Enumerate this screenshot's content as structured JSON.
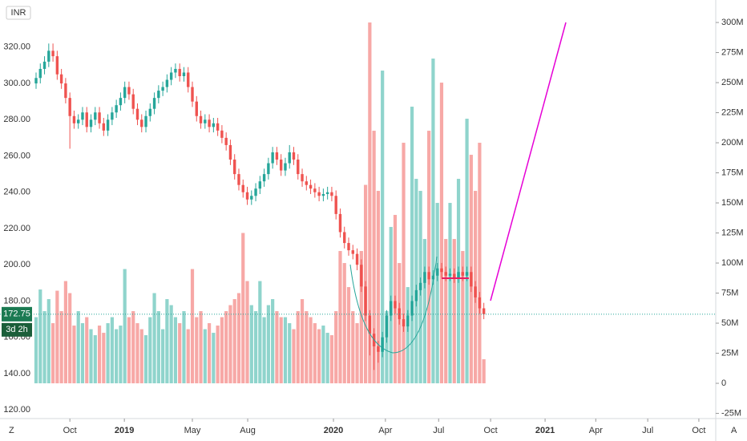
{
  "chart_data": {
    "type": "candlestick",
    "currency": "INR",
    "countdown": "3d 2h",
    "corner_labels": [
      "Z",
      "A"
    ],
    "up_color": "#26a69a",
    "down_color": "#ef5350",
    "up_volume_color": "#8fd4cc",
    "down_volume_color": "#f7a8a6",
    "ylim": [
      115.2,
      346
    ],
    "yticks": [
      {
        "value": 120,
        "label": "120.00"
      },
      {
        "value": 140,
        "label": "140.00"
      },
      {
        "value": 160,
        "label": "160.00"
      },
      {
        "value": 180,
        "label": "180.00"
      },
      {
        "value": 200,
        "label": "200.00"
      },
      {
        "value": 220,
        "label": "220.00"
      },
      {
        "value": 240,
        "label": "240.00"
      },
      {
        "value": 260,
        "label": "260.00"
      },
      {
        "value": 280,
        "label": "280.00"
      },
      {
        "value": 300,
        "label": "300.00"
      },
      {
        "value": 320,
        "label": "320.00"
      }
    ],
    "y2lim": [
      -29.3,
      318.7
    ],
    "y2ticks": [
      {
        "value": -25,
        "label": "-25M"
      },
      0,
      {
        "value": 25,
        "label": "25M"
      },
      {
        "value": 50,
        "label": "50M"
      },
      {
        "value": 75,
        "label": "75M"
      },
      {
        "value": 100,
        "label": "100M"
      },
      {
        "value": 125,
        "label": "125M"
      },
      {
        "value": 150,
        "label": "150M"
      },
      {
        "value": 175,
        "label": "175M"
      },
      {
        "value": 200,
        "label": "200M"
      },
      {
        "value": 225,
        "label": "225M"
      },
      {
        "value": 250,
        "label": "250M"
      },
      {
        "value": 275,
        "label": "275M"
      },
      {
        "value": 300,
        "label": "300M"
      }
    ],
    "xlim": [
      -8.54,
      160.9
    ],
    "xticks": [
      {
        "value": 8,
        "label": "Oct"
      },
      {
        "value": 20.9,
        "label": "2019"
      },
      {
        "value": 37,
        "label": "May"
      },
      {
        "value": 50.1,
        "label": "Aug"
      },
      {
        "value": 70.4,
        "label": "2020"
      },
      {
        "value": 82.7,
        "label": "Apr"
      },
      {
        "value": 95.3,
        "label": "Jul"
      },
      {
        "value": 107.6,
        "label": "Oct"
      },
      {
        "value": 120.5,
        "label": "2021"
      },
      {
        "value": 132.5,
        "label": "Apr"
      },
      {
        "value": 144.8,
        "label": "Jul"
      },
      {
        "value": 156.9,
        "label": "Oct"
      }
    ],
    "open": [
      300,
      303,
      308,
      312,
      318,
      315,
      305,
      300,
      292,
      282,
      278,
      280,
      284,
      276,
      280,
      284,
      278,
      274,
      280,
      284,
      288,
      292,
      298,
      294,
      286,
      280,
      276,
      282,
      286,
      292,
      296,
      298,
      302,
      306,
      308,
      304,
      306,
      298,
      290,
      282,
      278,
      280,
      276,
      278,
      274,
      270,
      266,
      258,
      250,
      244,
      240,
      236,
      238,
      242,
      246,
      250,
      256,
      262,
      258,
      252,
      256,
      262,
      258,
      250,
      246,
      244,
      242,
      240,
      238,
      239,
      240,
      238,
      228,
      218,
      212,
      208,
      206,
      200,
      188,
      172,
      162,
      155,
      152,
      160,
      172,
      180,
      176,
      170,
      166,
      172,
      180,
      186,
      190,
      196,
      192,
      194,
      198,
      196,
      194,
      195,
      193,
      196,
      194,
      196,
      188,
      182,
      176
    ],
    "high": [
      306,
      311,
      315,
      322,
      322,
      318,
      308,
      303,
      295,
      285,
      283,
      287,
      287,
      283,
      287,
      287,
      281,
      283,
      287,
      291,
      295,
      301,
      301,
      297,
      289,
      283,
      285,
      289,
      295,
      299,
      301,
      305,
      309,
      311,
      311,
      309,
      309,
      301,
      293,
      285,
      283,
      283,
      281,
      281,
      277,
      273,
      269,
      261,
      253,
      247,
      243,
      241,
      245,
      249,
      253,
      259,
      265,
      265,
      261,
      259,
      266,
      265,
      261,
      253,
      249,
      247,
      245,
      243,
      242,
      243,
      243,
      241,
      231,
      221,
      215,
      211,
      209,
      203,
      191,
      175,
      165,
      158,
      163,
      175,
      183,
      183,
      179,
      173,
      175,
      183,
      189,
      193,
      199,
      199,
      197,
      201,
      201,
      199,
      198,
      198,
      199,
      199,
      199,
      199,
      191,
      185,
      179
    ],
    "low": [
      297,
      300,
      305,
      309,
      312,
      302,
      297,
      289,
      264,
      275,
      275,
      277,
      273,
      273,
      277,
      275,
      271,
      271,
      277,
      281,
      285,
      289,
      291,
      283,
      277,
      273,
      273,
      279,
      283,
      289,
      293,
      295,
      299,
      303,
      301,
      301,
      295,
      287,
      279,
      275,
      275,
      273,
      273,
      271,
      267,
      263,
      255,
      247,
      241,
      237,
      233,
      233,
      235,
      239,
      243,
      247,
      253,
      255,
      249,
      249,
      253,
      255,
      247,
      243,
      241,
      239,
      237,
      235,
      235,
      236,
      235,
      225,
      215,
      209,
      205,
      203,
      197,
      185,
      169,
      150,
      142,
      146,
      149,
      157,
      169,
      173,
      167,
      163,
      163,
      169,
      177,
      183,
      187,
      189,
      189,
      191,
      193,
      191,
      191,
      190,
      190,
      191,
      191,
      185,
      179,
      173,
      170
    ],
    "close": [
      303,
      308,
      312,
      318,
      315,
      305,
      300,
      292,
      282,
      278,
      280,
      284,
      276,
      280,
      284,
      278,
      274,
      280,
      284,
      288,
      292,
      298,
      294,
      286,
      280,
      276,
      282,
      286,
      292,
      296,
      298,
      302,
      306,
      308,
      304,
      306,
      298,
      290,
      282,
      278,
      280,
      276,
      278,
      274,
      270,
      266,
      258,
      250,
      244,
      240,
      236,
      238,
      242,
      246,
      250,
      256,
      262,
      258,
      252,
      256,
      262,
      258,
      250,
      246,
      244,
      242,
      240,
      238,
      239,
      240,
      238,
      228,
      218,
      212,
      208,
      206,
      200,
      188,
      172,
      162,
      155,
      152,
      160,
      172,
      180,
      176,
      170,
      166,
      172,
      180,
      186,
      190,
      196,
      192,
      194,
      198,
      196,
      194,
      195,
      193,
      196,
      194,
      196,
      188,
      182,
      176,
      172.75
    ],
    "volume": [
      55,
      78,
      60,
      70,
      50,
      77,
      60,
      85,
      75,
      48,
      60,
      50,
      55,
      45,
      40,
      48,
      42,
      50,
      55,
      45,
      48,
      95,
      55,
      60,
      50,
      45,
      40,
      55,
      75,
      60,
      45,
      70,
      65,
      55,
      50,
      60,
      45,
      95,
      55,
      60,
      45,
      50,
      42,
      48,
      55,
      60,
      65,
      70,
      75,
      125,
      85,
      65,
      60,
      85,
      55,
      65,
      70,
      60,
      55,
      55,
      50,
      45,
      60,
      70,
      60,
      55,
      50,
      45,
      48,
      42,
      40,
      60,
      110,
      100,
      80,
      60,
      50,
      110,
      165,
      300,
      210,
      160,
      260,
      60,
      130,
      140,
      100,
      200,
      80,
      230,
      170,
      160,
      120,
      210,
      270,
      150,
      250,
      120,
      150,
      120,
      170,
      110,
      220,
      190,
      160,
      200,
      20
    ]
  }
}
